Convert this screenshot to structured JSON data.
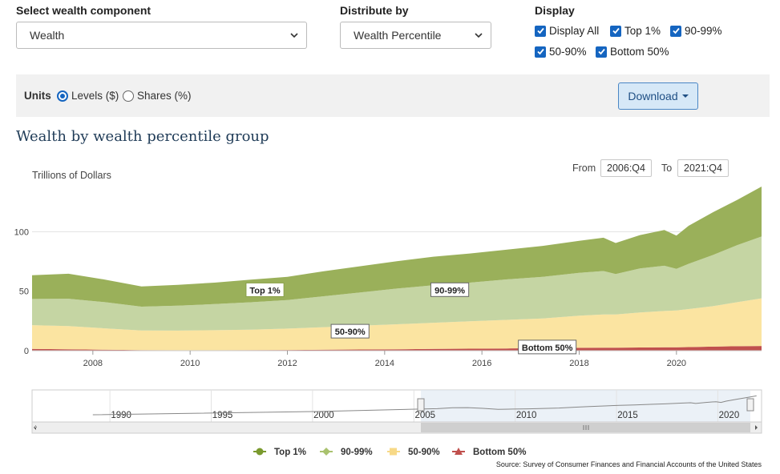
{
  "controls": {
    "component_label": "Select wealth component",
    "component_value": "Wealth",
    "distribute_label": "Distribute by",
    "distribute_value": "Wealth Percentile",
    "display_label": "Display",
    "display_options": [
      {
        "label": "Display All",
        "checked": true
      },
      {
        "label": "Top 1%",
        "checked": true
      },
      {
        "label": "90-99%",
        "checked": true
      },
      {
        "label": "50-90%",
        "checked": true
      },
      {
        "label": "Bottom 50%",
        "checked": true
      }
    ]
  },
  "units": {
    "label": "Units",
    "options": [
      {
        "label": "Levels ($)",
        "selected": true
      },
      {
        "label": "Shares (%)",
        "selected": false
      }
    ],
    "download_label": "Download"
  },
  "range": {
    "from_label": "From",
    "from_value": "2006:Q4",
    "to_label": "To",
    "to_value": "2021:Q4"
  },
  "chart_data": {
    "type": "area",
    "title": "Wealth by wealth percentile group",
    "ylabel": "Trillions of Dollars",
    "xlabel": "",
    "stacked": true,
    "y_ticks": [
      0,
      50,
      100
    ],
    "ylim": [
      0,
      140
    ],
    "xlim": [
      2006.75,
      2021.75
    ],
    "x_ticks": [
      2008,
      2010,
      2012,
      2014,
      2016,
      2018,
      2020
    ],
    "x": [
      2006.75,
      2007.5,
      2008.25,
      2009,
      2009.75,
      2010.5,
      2011.25,
      2012,
      2012.75,
      2013.5,
      2014.25,
      2015,
      2015.75,
      2016.5,
      2017.25,
      2018,
      2018.5,
      2018.75,
      2019.25,
      2019.75,
      2020,
      2020.25,
      2020.75,
      2021.25,
      2021.75
    ],
    "series": [
      {
        "name": "Bottom 50%",
        "color": "#c0504d",
        "values": [
          1.5,
          1.2,
          0.8,
          0.5,
          0.4,
          0.4,
          0.5,
          0.6,
          0.8,
          1.0,
          1.2,
          1.5,
          1.7,
          1.9,
          2.1,
          2.4,
          2.5,
          2.5,
          2.7,
          2.9,
          2.8,
          3.0,
          3.4,
          3.8,
          4.0
        ]
      },
      {
        "name": "50-90%",
        "color": "#fbe4a1",
        "values": [
          20,
          19.5,
          18,
          16.5,
          16.5,
          16.8,
          17.2,
          18,
          19,
          20,
          21,
          22,
          23,
          24,
          25,
          27,
          28,
          28,
          29.5,
          30.5,
          31,
          32,
          34,
          37,
          40
        ]
      },
      {
        "name": "90-99%",
        "color": "#c5d5a3",
        "values": [
          22,
          23,
          22,
          20,
          21,
          22,
          23,
          24,
          26,
          28,
          30,
          31.5,
          32.5,
          34,
          35,
          36,
          36.5,
          34,
          37,
          38,
          35,
          38,
          43,
          48,
          52
        ]
      },
      {
        "name": "Top 1%",
        "color": "#9ab05a",
        "values": [
          20,
          21,
          19,
          17,
          17.5,
          18,
          19,
          19.5,
          21,
          22,
          23,
          24,
          24.5,
          25,
          26,
          27,
          28,
          26,
          28,
          30,
          28,
          32,
          36,
          38,
          42
        ]
      }
    ],
    "annotations": [
      {
        "text": "Top 1%"
      },
      {
        "text": "90-99%"
      },
      {
        "text": "50-90%"
      },
      {
        "text": "Bottom 50%"
      }
    ],
    "navigator_ticks": [
      "1990",
      "1995",
      "2000",
      "2005",
      "2010",
      "2015",
      "2020"
    ],
    "legend_position": "bottom-center"
  },
  "source": "Source: Survey of Consumer Finances and Financial Accounts of the United States"
}
